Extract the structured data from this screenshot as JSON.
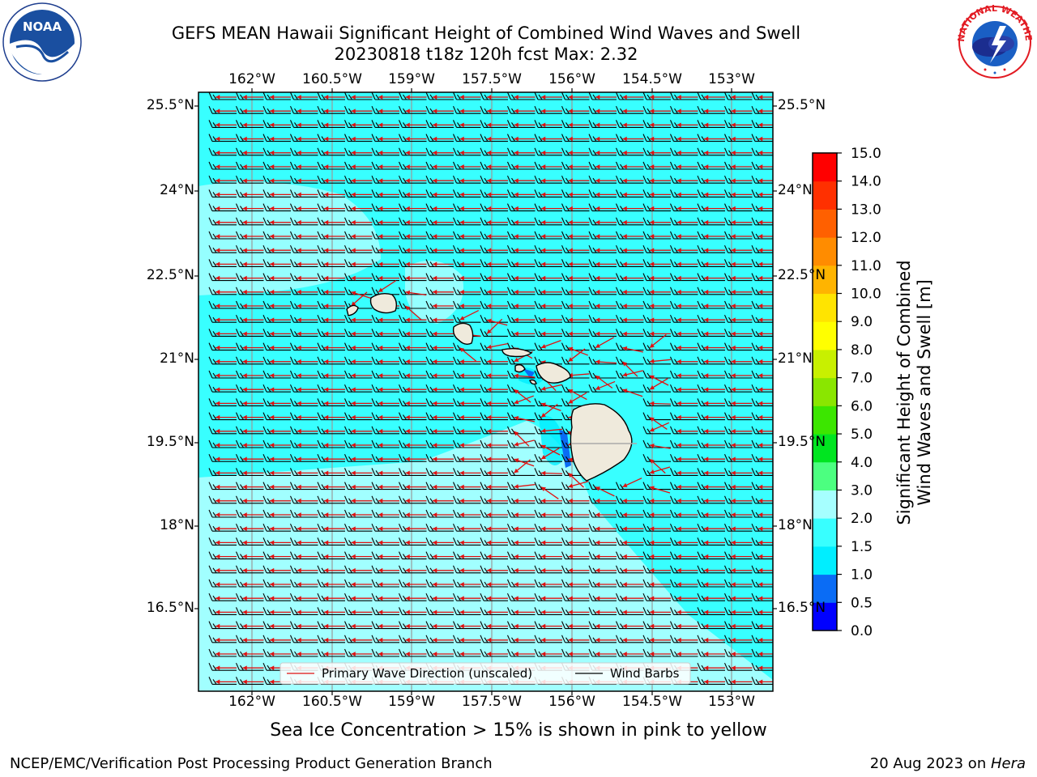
{
  "title_line1": "GEFS MEAN Hawaii Significant Height of Combined Wind Waves and Swell",
  "title_line2": "20230818 t18z 120h fcst   Max: 2.32",
  "lon_labels": [
    "162°W",
    "160.5°W",
    "159°W",
    "157.5°W",
    "156°W",
    "154.5°W",
    "153°W"
  ],
  "lat_labels": [
    "25.5°N",
    "24°N",
    "22.5°N",
    "21°N",
    "19.5°N",
    "18°N",
    "16.5°N"
  ],
  "legend": {
    "wave": "Primary Wave Direction (unscaled)",
    "barbs": "Wind Barbs"
  },
  "colorbar": {
    "label_line1": "Significant Height of Combined",
    "label_line2": "Wind Waves and Swell [m]",
    "ticks": [
      "0.0",
      "0.5",
      "1.0",
      "1.5",
      "2.0",
      "3.0",
      "4.0",
      "5.0",
      "6.0",
      "7.0",
      "8.0",
      "9.0",
      "10.0",
      "11.0",
      "12.0",
      "13.0",
      "14.0",
      "15.0"
    ],
    "colors": [
      "#0000ff",
      "#0a6cf5",
      "#00eeff",
      "#38ffff",
      "#a6ffff",
      "#4cff80",
      "#00e520",
      "#3ce600",
      "#8ae600",
      "#c8f000",
      "#ffff00",
      "#ffe400",
      "#ffb400",
      "#ff8c00",
      "#ff6000",
      "#ff3000",
      "#ff0000"
    ]
  },
  "note": "Sea Ice Concentration > 15% is shown in pink to yellow",
  "footer_left": "NCEP/EMC/Verification Post Processing Product Generation Branch",
  "footer_right_prefix": "20 Aug 2023 on ",
  "footer_right_host": "Hera",
  "logos": {
    "noaa_text": "NOAA",
    "nws_text": "NATIONAL WEATHER SERVICE"
  }
}
